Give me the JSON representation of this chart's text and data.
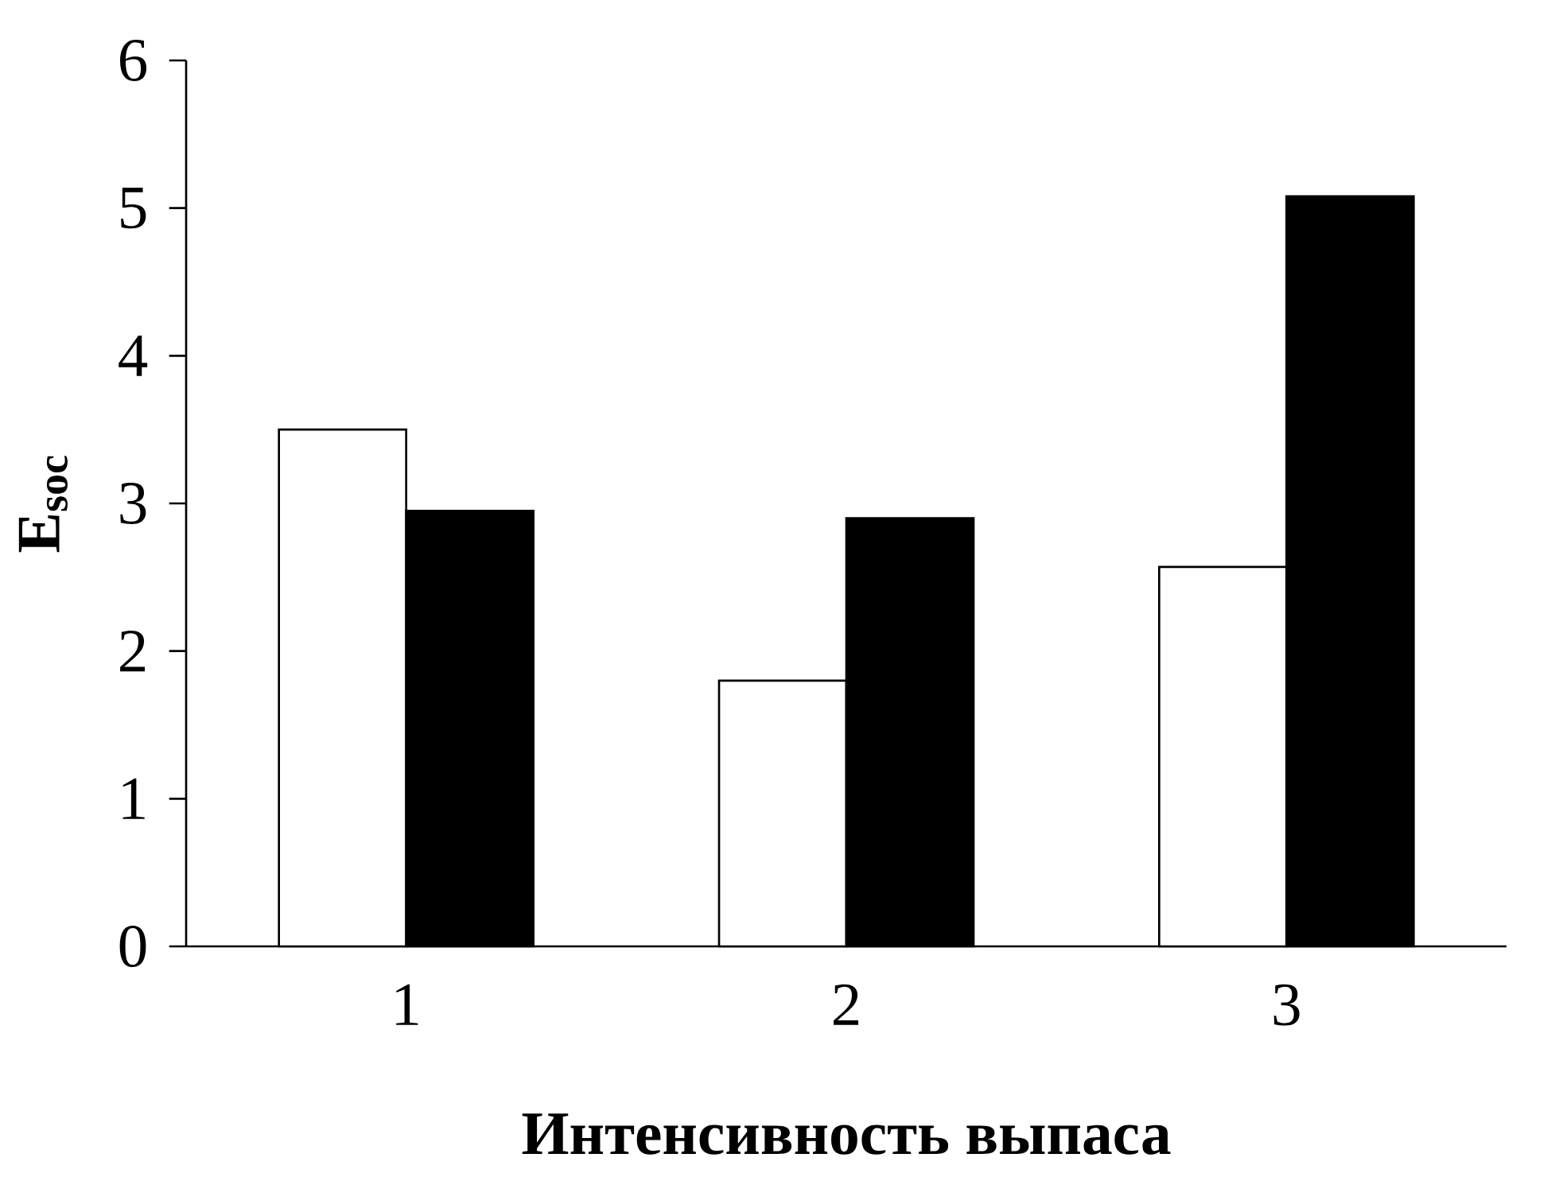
{
  "chart_data": {
    "type": "bar",
    "xlabel": "Интенсивность  выпаса",
    "ylabel": "E$_{soc}$",
    "categories": [
      "1",
      "2",
      "3"
    ],
    "series": [
      {
        "color": "#ffffff",
        "values": [
          3.5,
          1.8,
          2.57
        ]
      },
      {
        "color": "#000000",
        "values": [
          2.95,
          2.9,
          5.08
        ]
      }
    ],
    "ylim": [
      0,
      6
    ],
    "yticks": [
      0,
      1,
      2,
      3,
      4,
      5,
      6
    ],
    "grid": false
  }
}
